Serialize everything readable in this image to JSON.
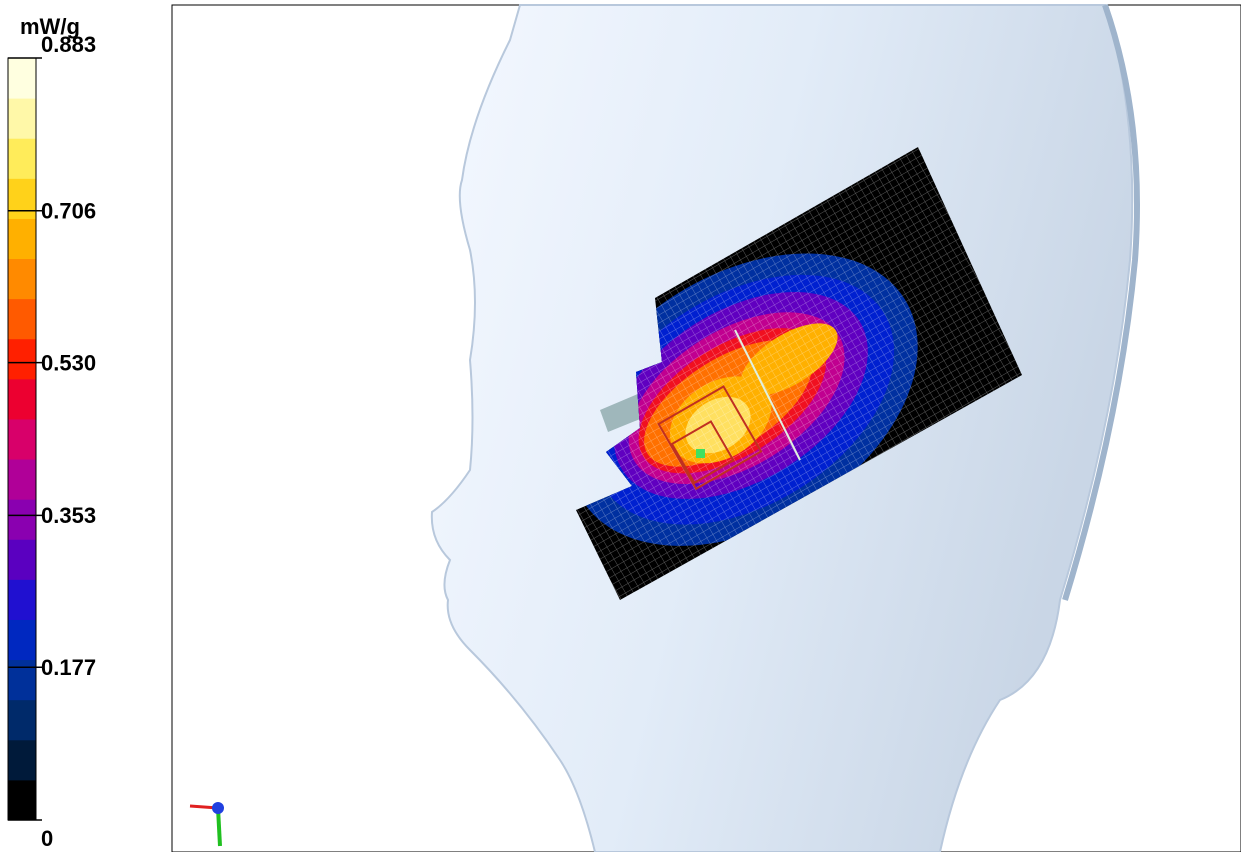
{
  "colorbar": {
    "unit": "mW/g",
    "range": [
      0,
      0.883
    ],
    "ticks": [
      0.883,
      0.706,
      {
        "value": 0.53,
        "label": "0.530"
      },
      0.353,
      0.177,
      0
    ],
    "colors": [
      "#000000",
      "#001a3a",
      "#002a6a",
      "#00309a",
      "#0028c0",
      "#2010d0",
      "#5a00c0",
      "#8a00b0",
      "#b00098",
      "#d8006a",
      "#ec0030",
      "#ff2000",
      "#ff5a00",
      "#ff8a00",
      "#ffb000",
      "#ffd21a",
      "#ffec5a",
      "#fff8a8",
      "#ffffe0"
    ]
  }
}
